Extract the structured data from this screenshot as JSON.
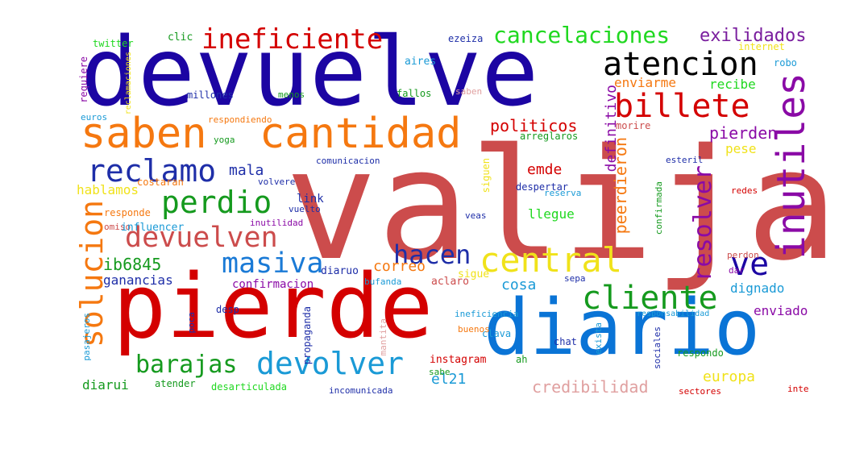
{
  "words": [
    {
      "text": "valija",
      "color": "#cc4c4c"
    },
    {
      "text": "devuelve",
      "color": "#1c05a3"
    },
    {
      "text": "pierde",
      "color": "#d40000"
    },
    {
      "text": "diario",
      "color": "#0a74d6"
    },
    {
      "text": "saben",
      "color": "#f57810"
    },
    {
      "text": "cantidad",
      "color": "#f57810"
    },
    {
      "text": "inutiles",
      "color": "#8a0aa6"
    },
    {
      "text": "atencion",
      "color": "#000000"
    },
    {
      "text": "billete",
      "color": "#d40000"
    },
    {
      "text": "ineficiente",
      "color": "#d40000"
    },
    {
      "text": "cancelaciones",
      "color": "#20d820"
    },
    {
      "text": "exilidados",
      "color": "#7a1e9e"
    },
    {
      "text": "reclamo",
      "color": "#1e2ea8"
    },
    {
      "text": "perdio",
      "color": "#159a1e"
    },
    {
      "text": "devuelven",
      "color": "#cc4c4c"
    },
    {
      "text": "masiva",
      "color": "#1a7ad6"
    },
    {
      "text": "hacen",
      "color": "#1e2ea8"
    },
    {
      "text": "central",
      "color": "#f0e21a"
    },
    {
      "text": "resolver",
      "color": "#8a0aa6"
    },
    {
      "text": "ve",
      "color": "#1c05a3"
    },
    {
      "text": "cliente",
      "color": "#159a1e"
    },
    {
      "text": "solucion",
      "color": "#f57810"
    },
    {
      "text": "devolver",
      "color": "#1a9ad6"
    },
    {
      "text": "barajas",
      "color": "#159a1e"
    },
    {
      "text": "politicos",
      "color": "#d40000"
    },
    {
      "text": "pierden",
      "color": "#8a0aa6"
    },
    {
      "text": "enviarme",
      "color": "#f57810"
    },
    {
      "text": "recibe",
      "color": "#20d820"
    },
    {
      "text": "pese",
      "color": "#f0e21a"
    },
    {
      "text": "morire",
      "color": "#cc4c4c"
    },
    {
      "text": "definitivo",
      "color": "#8a0aa6"
    },
    {
      "text": "peerdieron",
      "color": "#f57810"
    },
    {
      "text": "emde",
      "color": "#d40000"
    },
    {
      "text": "mala",
      "color": "#1e2ea8"
    },
    {
      "text": "ib6845",
      "color": "#159a1e"
    },
    {
      "text": "correo",
      "color": "#f57810"
    },
    {
      "text": "ganancias",
      "color": "#1e2ea8"
    },
    {
      "text": "cosa",
      "color": "#1a9ad6"
    },
    {
      "text": "dignado",
      "color": "#1a9ad6"
    },
    {
      "text": "enviado",
      "color": "#8a0aa6"
    },
    {
      "text": "europa",
      "color": "#f0e21a"
    },
    {
      "text": "credibilidad",
      "color": "#e0a0a0"
    },
    {
      "text": "diarui",
      "color": "#159a1e"
    },
    {
      "text": "el21",
      "color": "#1a9ad6"
    },
    {
      "text": "llegue",
      "color": "#20d820"
    },
    {
      "text": "confirmacion",
      "color": "#8a0aa6"
    },
    {
      "text": "hablamos",
      "color": "#f0e21a"
    },
    {
      "text": "link",
      "color": "#1e2ea8"
    },
    {
      "text": "diaruo",
      "color": "#1e2ea8"
    },
    {
      "text": "aclaro",
      "color": "#cc4c4c"
    },
    {
      "text": "sigue",
      "color": "#f0e21a"
    },
    {
      "text": "clic",
      "color": "#159a1e"
    },
    {
      "text": "twitter",
      "color": "#20d820"
    },
    {
      "text": "requiere",
      "color": "#8a0aa6"
    },
    {
      "text": "euros",
      "color": "#1a9ad6"
    },
    {
      "text": "reclamaciones",
      "color": "#f0e21a"
    },
    {
      "text": "ezeiza",
      "color": "#1e2ea8"
    },
    {
      "text": "internet",
      "color": "#f0e21a"
    },
    {
      "text": "robo",
      "color": "#1a9ad6"
    },
    {
      "text": "aires",
      "color": "#1a9ad6"
    },
    {
      "text": "millones",
      "color": "#1e2ea8"
    },
    {
      "text": "fallos",
      "color": "#159a1e"
    },
    {
      "text": "saben",
      "color": "#e0a0a0"
    },
    {
      "text": "respondiendo",
      "color": "#f57810"
    },
    {
      "text": "arreglaros",
      "color": "#159a1e"
    },
    {
      "text": "yoga",
      "color": "#159a1e"
    },
    {
      "text": "comunicacion",
      "color": "#1e2ea8"
    },
    {
      "text": "esteril",
      "color": "#1e2ea8"
    },
    {
      "text": "costaran",
      "color": "#f57810"
    },
    {
      "text": "volvere",
      "color": "#1e2ea8"
    },
    {
      "text": "siguen",
      "color": "#f0e21a"
    },
    {
      "text": "despertar",
      "color": "#1e2ea8"
    },
    {
      "text": "reserva",
      "color": "#1a9ad6"
    },
    {
      "text": "confirmada",
      "color": "#159a1e"
    },
    {
      "text": "redes",
      "color": "#d40000"
    },
    {
      "text": "responde",
      "color": "#f57810"
    },
    {
      "text": "omiso",
      "color": "#cc4c4c"
    },
    {
      "text": "influencer",
      "color": "#1a9ad6"
    },
    {
      "text": "vuelto",
      "color": "#1e2ea8"
    },
    {
      "text": "inutilidad",
      "color": "#8a0aa6"
    },
    {
      "text": "veas",
      "color": "#1e2ea8"
    },
    {
      "text": "bufanda",
      "color": "#1a9ad6"
    },
    {
      "text": "sepa",
      "color": "#1e2ea8"
    },
    {
      "text": "dar",
      "color": "#8a0aa6"
    },
    {
      "text": "perdon",
      "color": "#cc4c4c"
    },
    {
      "text": "desp",
      "color": "#1e2ea8"
    },
    {
      "text": "propaganda",
      "color": "#1e2ea8"
    },
    {
      "text": "ineficiencia",
      "color": "#1a9ad6"
    },
    {
      "text": "responsabilidad",
      "color": "#1a9ad6"
    },
    {
      "text": "clava",
      "color": "#1a9ad6"
    },
    {
      "text": "pasajeros",
      "color": "#1a9ad6"
    },
    {
      "text": "poca",
      "color": "#1e2ea8"
    },
    {
      "text": "mantita",
      "color": "#e0a0a0"
    },
    {
      "text": "instagram",
      "color": "#d40000"
    },
    {
      "text": "buenos",
      "color": "#f57810"
    },
    {
      "text": "ah",
      "color": "#159a1e"
    },
    {
      "text": "chat",
      "color": "#1e2ea8"
    },
    {
      "text": "exista",
      "color": "#1a9ad6"
    },
    {
      "text": "sociales",
      "color": "#1e2ea8"
    },
    {
      "text": "respondo",
      "color": "#159a1e"
    },
    {
      "text": "sabe",
      "color": "#159a1e"
    },
    {
      "text": "sectores",
      "color": "#d40000"
    },
    {
      "text": "inte",
      "color": "#d40000"
    },
    {
      "text": "atender",
      "color": "#159a1e"
    },
    {
      "text": "desarticulada",
      "color": "#20d820"
    },
    {
      "text": "incomunicada",
      "color": "#1e2ea8"
    },
    {
      "text": "menos",
      "color": "#159a1e"
    }
  ]
}
